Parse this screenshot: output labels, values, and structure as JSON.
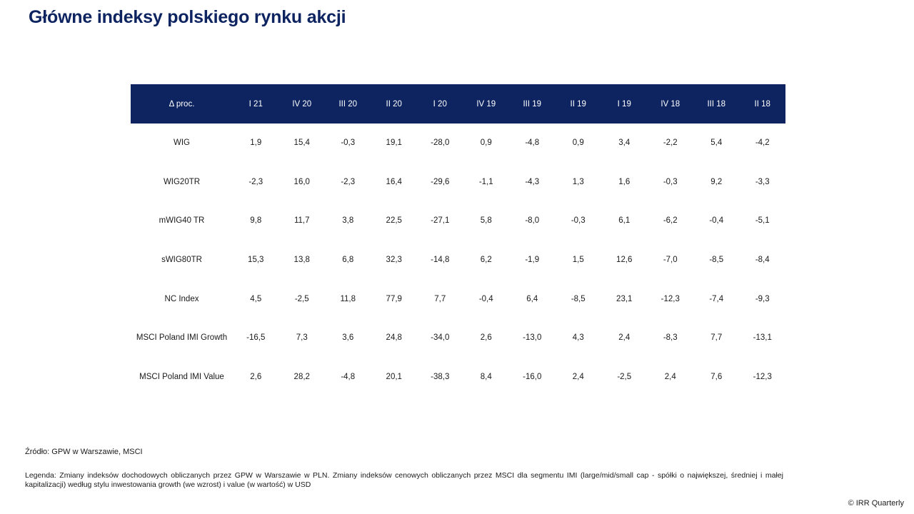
{
  "page": {
    "title": "Główne indeksy polskiego rynku akcji",
    "source": "Źródło: GPW w Warszawie, MSCI",
    "legend": "Legenda: Zmiany indeksów dochodowych obliczanych przez GPW w Warszawie w PLN. Zmiany indeksów cenowych obliczanych przez MSCI dla segmentu IMI (large/mid/small cap - spółki o największej, średniej i małej kapitalizacji) według stylu inwestowania growth (we wzrost) i value (w wartość) w USD",
    "copyright": "© IRR Quarterly"
  },
  "colors": {
    "header_bg": "#0d2461",
    "header_text": "#ffffff",
    "title": "#0d2461"
  },
  "chart_data": {
    "type": "table",
    "corner_label": "Δ proc.",
    "columns": [
      "I 21",
      "IV 20",
      "III 20",
      "II 20",
      "I 20",
      "IV 19",
      "III 19",
      "II 19",
      "I 19",
      "IV 18",
      "III 18",
      "II 18"
    ],
    "rows": [
      {
        "name": "WIG",
        "values": [
          "1,9",
          "15,4",
          "-0,3",
          "19,1",
          "-28,0",
          "0,9",
          "-4,8",
          "0,9",
          "3,4",
          "-2,2",
          "5,4",
          "-4,2"
        ]
      },
      {
        "name": "WIG20TR",
        "values": [
          "-2,3",
          "16,0",
          "-2,3",
          "16,4",
          "-29,6",
          "-1,1",
          "-4,3",
          "1,3",
          "1,6",
          "-0,3",
          "9,2",
          "-3,3"
        ]
      },
      {
        "name": "mWIG40 TR",
        "values": [
          "9,8",
          "11,7",
          "3,8",
          "22,5",
          "-27,1",
          "5,8",
          "-8,0",
          "-0,3",
          "6,1",
          "-6,2",
          "-0,4",
          "-5,1"
        ]
      },
      {
        "name": "sWIG80TR",
        "values": [
          "15,3",
          "13,8",
          "6,8",
          "32,3",
          "-14,8",
          "6,2",
          "-1,9",
          "1,5",
          "12,6",
          "-7,0",
          "-8,5",
          "-8,4"
        ]
      },
      {
        "name": "NC Index",
        "values": [
          "4,5",
          "-2,5",
          "11,8",
          "77,9",
          "7,7",
          "-0,4",
          "6,4",
          "-8,5",
          "23,1",
          "-12,3",
          "-7,4",
          "-9,3"
        ]
      },
      {
        "name": "MSCI Poland IMI Growth",
        "values": [
          "-16,5",
          "7,3",
          "3,6",
          "24,8",
          "-34,0",
          "2,6",
          "-13,0",
          "4,3",
          "2,4",
          "-8,3",
          "7,7",
          "-13,1"
        ]
      },
      {
        "name": "MSCI Poland IMI Value",
        "values": [
          "2,6",
          "28,2",
          "-4,8",
          "20,1",
          "-38,3",
          "8,4",
          "-16,0",
          "2,4",
          "-2,5",
          "2,4",
          "7,6",
          "-12,3"
        ]
      }
    ]
  }
}
